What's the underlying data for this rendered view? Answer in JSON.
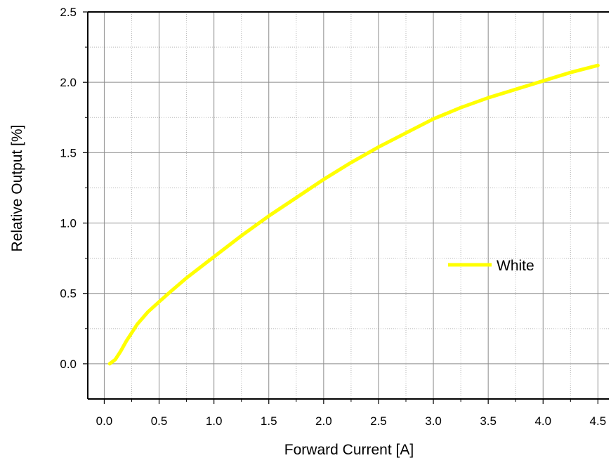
{
  "chart_data": {
    "type": "line",
    "title": "",
    "xlabel": "Forward Current [A]",
    "ylabel": "Relative Output [%]",
    "xlim": [
      -0.15,
      4.6
    ],
    "ylim": [
      -0.25,
      2.5
    ],
    "x_ticks": [
      0.0,
      0.5,
      1.0,
      1.5,
      2.0,
      2.5,
      3.0,
      3.5,
      4.0,
      4.5
    ],
    "x_tick_labels": [
      "0.0",
      "0.5",
      "1.0",
      "1.5",
      "2.0",
      "2.5",
      "3.0",
      "3.5",
      "4.0",
      "4.5"
    ],
    "y_ticks": [
      0.0,
      0.5,
      1.0,
      1.5,
      2.0,
      2.5
    ],
    "y_tick_labels": [
      "0.0",
      "0.5",
      "1.0",
      "1.5",
      "2.0",
      "2.5"
    ],
    "grid": true,
    "legend_position": "right",
    "series": [
      {
        "name": "White",
        "color": "#ffff00",
        "x": [
          0.05,
          0.1,
          0.15,
          0.2,
          0.3,
          0.4,
          0.5,
          0.6,
          0.75,
          1.0,
          1.25,
          1.5,
          1.75,
          2.0,
          2.25,
          2.5,
          2.75,
          3.0,
          3.25,
          3.5,
          3.75,
          4.0,
          4.25,
          4.5
        ],
        "y": [
          0.0,
          0.03,
          0.09,
          0.16,
          0.28,
          0.37,
          0.44,
          0.51,
          0.61,
          0.76,
          0.91,
          1.05,
          1.18,
          1.31,
          1.43,
          1.54,
          1.64,
          1.74,
          1.82,
          1.89,
          1.95,
          2.01,
          2.07,
          2.12
        ]
      }
    ]
  }
}
